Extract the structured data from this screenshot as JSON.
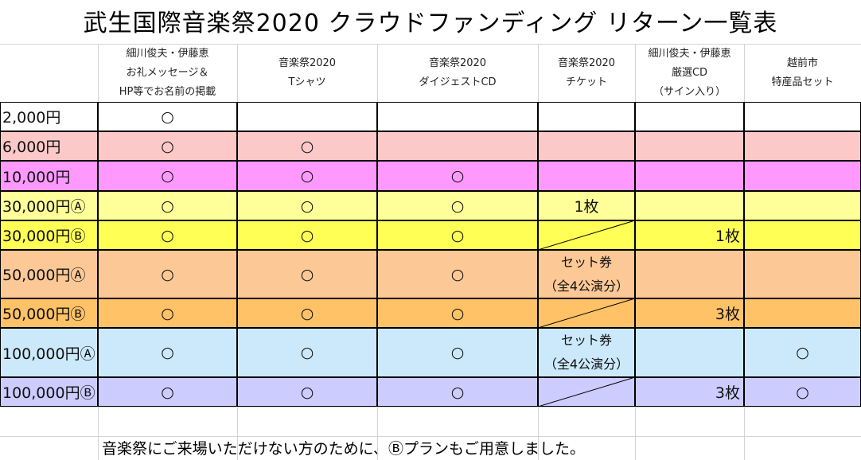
{
  "header": {
    "title": "武生国際音楽祭2020 クラウドファンディング リターン一覧表"
  },
  "table": {
    "columns": [
      [
        "細川俊夫・伊藤恵",
        "お礼メッセージ＆",
        "HP等でお名前の掲載"
      ],
      [
        "音楽祭2020",
        "Tシャツ"
      ],
      [
        "音楽祭2020",
        "ダイジェストCD"
      ],
      [
        "音楽祭2020",
        "チケット"
      ],
      [
        "細川俊夫・伊藤恵",
        "厳選CD",
        "（サイン入り）"
      ],
      [
        "越前市",
        "特産品セット"
      ]
    ],
    "rows": [
      {
        "label": "2,000円",
        "cells": [
          "○",
          null,
          null,
          null,
          null,
          null
        ]
      },
      {
        "label": "6,000円",
        "cells": [
          "○",
          "○",
          null,
          null,
          null,
          null
        ]
      },
      {
        "label": "10,000円",
        "cells": [
          "○",
          "○",
          "○",
          null,
          null,
          null
        ]
      },
      {
        "label": "30,000円Ⓐ",
        "cells": [
          "○",
          "○",
          "○",
          "1枚",
          null,
          null
        ]
      },
      {
        "label": "30,000円Ⓑ",
        "cells": [
          "○",
          "○",
          "○",
          null,
          "1枚",
          null
        ]
      },
      {
        "label": "50,000円Ⓐ",
        "cells": [
          "○",
          "○",
          "○",
          [
            "セット券",
            "（全4公演分）"
          ],
          null,
          null
        ]
      },
      {
        "label": "50,000円Ⓑ",
        "cells": [
          "○",
          "○",
          "○",
          null,
          "3枚",
          null
        ]
      },
      {
        "label": "100,000円Ⓐ",
        "cells": [
          "○",
          "○",
          "○",
          [
            "セット券",
            "（全4公演分）"
          ],
          null,
          "○"
        ]
      },
      {
        "label": "100,000円Ⓑ",
        "cells": [
          "○",
          "○",
          "○",
          null,
          "3枚",
          "○"
        ]
      }
    ]
  },
  "footnote": "音楽祭にご来場いただけない方のために、Ⓑプランもご用意しました。"
}
